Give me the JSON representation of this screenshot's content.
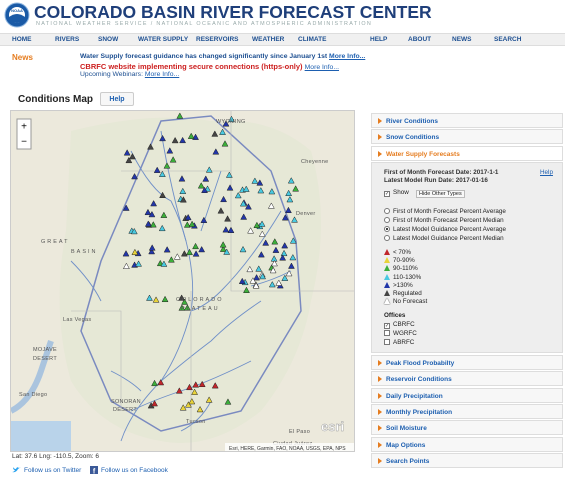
{
  "header": {
    "logo": "NOAA",
    "title": "COLORADO BASIN RIVER FORECAST CENTER",
    "subtitle": "NATIONAL WEATHER SERVICE / NATIONAL OCEANIC AND ATMOSPHERIC ADMINISTRATION"
  },
  "nav": [
    "HOME",
    "RIVERS",
    "SNOW",
    "WATER SUPPLY",
    "RESERVOIRS",
    "WEATHER",
    "CLIMATE",
    "HELP",
    "ABOUT",
    "NEWS",
    "SEARCH"
  ],
  "news": {
    "label": "News",
    "items": [
      {
        "text": "Water Supply forecast guidance has changed significantly since January 1st",
        "link": "More Info..."
      },
      {
        "text": "CBRFC website implementing secure connections (https-only)",
        "link": "More Info..."
      },
      {
        "text": "Upcoming Webinars:",
        "link": "More Info..."
      }
    ]
  },
  "conditions_map": {
    "title": "Conditions Map",
    "help": "Help",
    "zoom_in": "+",
    "zoom_out": "−",
    "labels": [
      "WYOMING",
      "Cheyenne",
      "Denver",
      "GREAT",
      "BASIN",
      "COLORADO",
      "PLATEAU",
      "MOJAVE",
      "DESERT",
      "Las Vegas",
      "SONORAN",
      "DESERT",
      "Tucson",
      "El Paso",
      "San Diego",
      "Ciudad Juárez"
    ],
    "esri": "esri",
    "attribution": "Esri, HERE, Garmin, FAO, NOAA, USGS, EPA, NPS",
    "status": "Lat: 37.6 Lng: -110.5, Zoom: 6"
  },
  "sidebar": {
    "sections_before": [
      "River Conditions",
      "Snow Conditions"
    ],
    "active": {
      "title": "Water Supply Forecasts",
      "forecast_date": "First of Month Forecast Date: 2017-1-1",
      "help": "Help",
      "model_date": "Latest Model Run Date: 2017-01-16",
      "show": "Show",
      "hide_other": "Hide Other Types",
      "options": [
        "First of Month Forecast Percent Average",
        "First of Month Forecast Percent Median",
        "Latest Model Guidance Percent Average",
        "Latest Model Guidance Percent Median"
      ],
      "legend": [
        "< 70%",
        "70-90%",
        "90-110%",
        "110-130%",
        ">130%",
        "Regulated",
        "No Forecast"
      ],
      "offices_title": "Offices",
      "offices": [
        "CBRFC",
        "WGRFC",
        "ABRFC"
      ]
    },
    "sections_after": [
      "Peak Flood Probabilty",
      "Reservoir Conditions",
      "Daily Precipitation",
      "Monthly Precipitation",
      "Soil Moisture",
      "Map Options",
      "Search Points"
    ]
  },
  "footer": {
    "twitter": "Follow us on Twitter",
    "facebook": "Follow us on Facebook"
  }
}
